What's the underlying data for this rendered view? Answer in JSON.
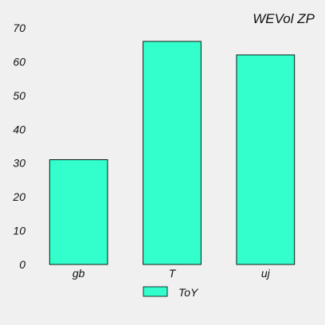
{
  "chart_data": {
    "type": "bar",
    "title": "WEVol  ZP",
    "categories": [
      "gb",
      "T",
      "uj"
    ],
    "series": [
      {
        "name": "ToY",
        "values": [
          31,
          66,
          62
        ],
        "color": "#33ffcc"
      }
    ],
    "ylim": [
      0,
      70
    ],
    "yticks": [
      0,
      10,
      20,
      30,
      40,
      50,
      60,
      70
    ],
    "grid": false,
    "legend": "bottom-center",
    "bar_edge_color": "#000000",
    "background": "#f0f0f0"
  }
}
